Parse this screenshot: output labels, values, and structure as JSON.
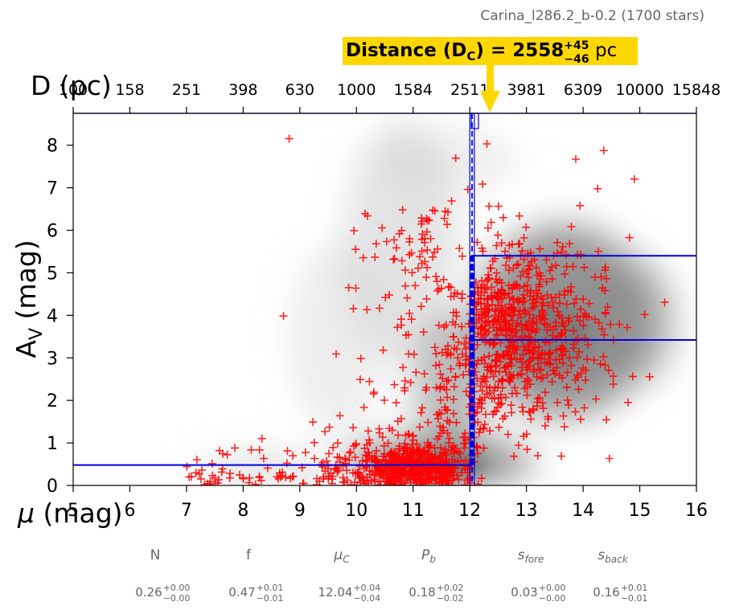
{
  "figure_title": "Carina_l286.2_b-0.2 (1700 stars)",
  "banner": {
    "prefix": "Distance (D",
    "sub": "C",
    "eq": ") = 2558",
    "sup": "+45",
    "inf": "−46",
    "unit": "pc"
  },
  "chart_data": {
    "type": "scatter",
    "xlabel": "μ (mag)",
    "ylabel": "A",
    "ylabel_sub": "V",
    "ylabel_unit": "(mag)",
    "top_axis_label": "D (pc)",
    "xlim": [
      5,
      16
    ],
    "ylim": [
      0,
      8.75
    ],
    "x_ticks": [
      5,
      6,
      7,
      8,
      9,
      10,
      11,
      12,
      13,
      14,
      15,
      16
    ],
    "x_tick_labels": [
      "5",
      "6",
      "7",
      "8",
      "9",
      "10",
      "11",
      "12",
      "13",
      "14",
      "15",
      "16"
    ],
    "y_ticks": [
      0,
      1,
      2,
      3,
      4,
      5,
      6,
      7,
      8
    ],
    "y_tick_labels": [
      "0",
      "1",
      "2",
      "3",
      "4",
      "5",
      "6",
      "7",
      "8"
    ],
    "top_ticks_mu": [
      5,
      6,
      7,
      8,
      9,
      10,
      11,
      12,
      13,
      14,
      15,
      16
    ],
    "top_tick_labels": [
      "100",
      "158",
      "251",
      "398",
      "630",
      "1000",
      "1584",
      "2511",
      "3981",
      "6309",
      "10000",
      "15848"
    ],
    "distance_modulus": 12.04,
    "distance_modulus_err": [
      12.0,
      12.08
    ],
    "av_foreground": 0.48,
    "av_background_levels": [
      3.42,
      5.4
    ],
    "marker_color": "#ff0000",
    "fit_line_color": "#0000dd",
    "background": "grayscale density map"
  },
  "params": [
    {
      "name": "N",
      "value": "0.26",
      "sup": "+0.00",
      "sub": "−0.00"
    },
    {
      "name": "f",
      "value": "0.47",
      "sup": "+0.01",
      "sub": "−0.01"
    },
    {
      "name": "μ",
      "sub_name": "C",
      "value": "12.04",
      "sup": "+0.04",
      "sub": "−0.04"
    },
    {
      "name": "P",
      "sub_name": "b",
      "value": "0.18",
      "sup": "+0.02",
      "sub": "−0.02"
    },
    {
      "name": "s",
      "sub_name": "fore",
      "value": "0.03",
      "sup": "+0.00",
      "sub": "−0.00"
    },
    {
      "name": "s",
      "sub_name": "back",
      "value": "0.16",
      "sup": "+0.01",
      "sub": "−0.01"
    }
  ]
}
